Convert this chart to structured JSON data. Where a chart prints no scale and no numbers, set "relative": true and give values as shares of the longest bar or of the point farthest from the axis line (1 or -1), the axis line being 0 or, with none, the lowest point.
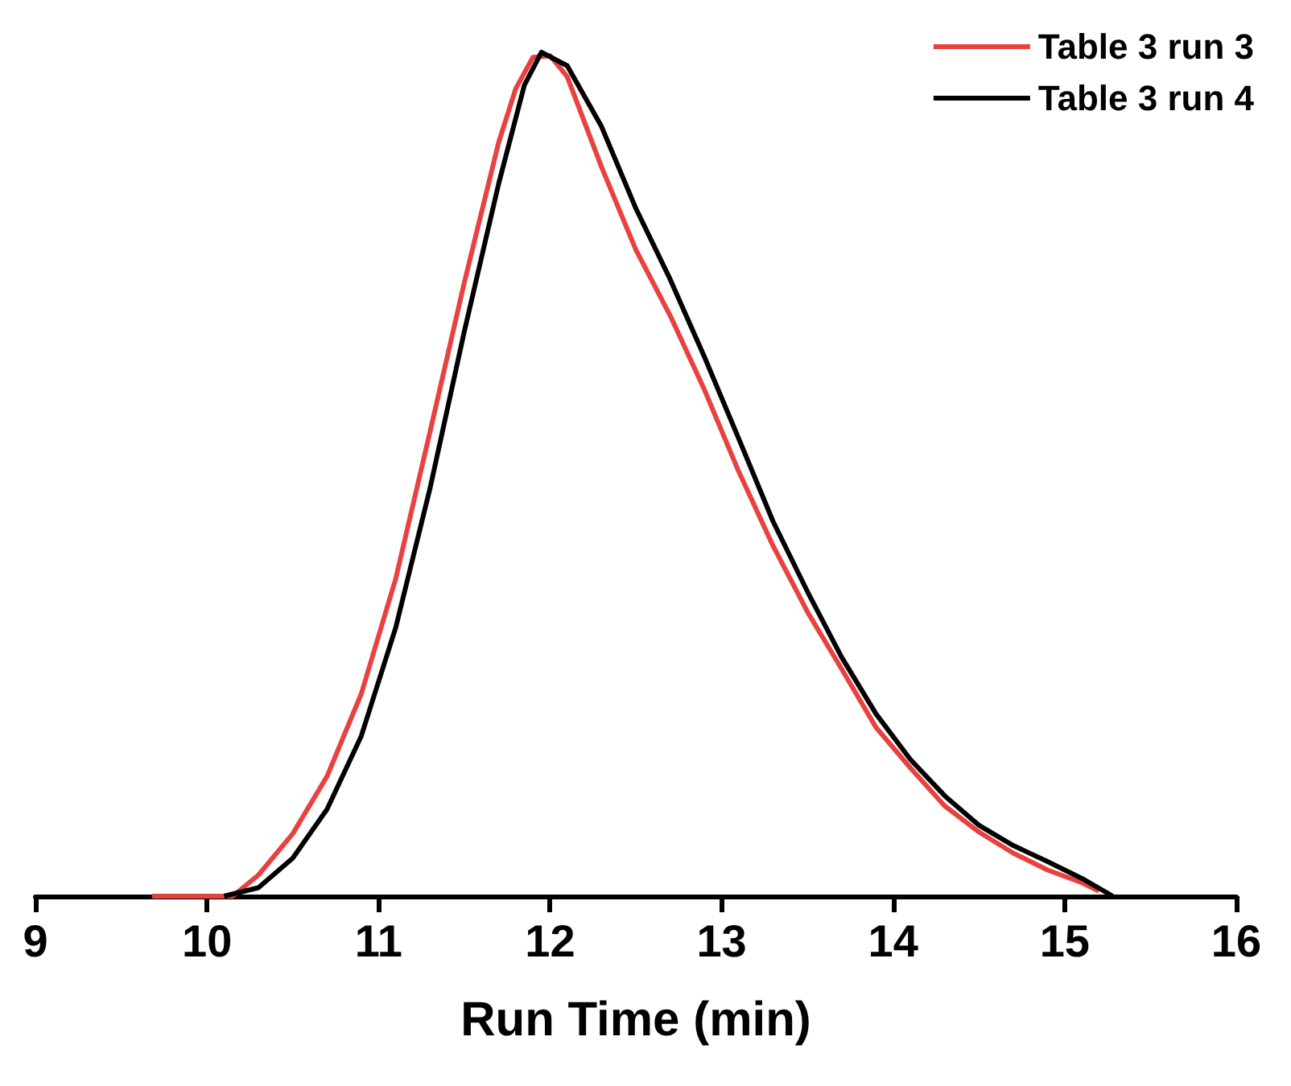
{
  "chart_data": {
    "type": "line",
    "relative": true,
    "xlabel": "Run Time (min)",
    "xlim": [
      9,
      16
    ],
    "xticks": [
      9,
      10,
      11,
      12,
      13,
      14,
      15,
      16
    ],
    "legend": "top right",
    "grid": false,
    "marker": "none",
    "line_style": "solid",
    "series": [
      {
        "name": "Table 3 run 3",
        "color": "#e8413f",
        "x": [
          9.68,
          10.15,
          10.3,
          10.5,
          10.7,
          10.9,
          11.1,
          11.3,
          11.5,
          11.7,
          11.8,
          11.9,
          12.0,
          12.1,
          12.3,
          12.5,
          12.7,
          12.9,
          13.1,
          13.3,
          13.5,
          13.7,
          13.9,
          14.1,
          14.3,
          14.5,
          14.7,
          14.9,
          15.1,
          15.2
        ],
        "values": [
          0,
          0,
          0.025,
          0.074,
          0.142,
          0.24,
          0.376,
          0.55,
          0.727,
          0.893,
          0.957,
          0.994,
          0.996,
          0.971,
          0.864,
          0.766,
          0.688,
          0.6,
          0.503,
          0.415,
          0.337,
          0.269,
          0.2,
          0.152,
          0.107,
          0.076,
          0.051,
          0.031,
          0.016,
          0.006
        ]
      },
      {
        "name": "Table 3 run 4",
        "color": "#000000",
        "x": [
          10.1,
          10.3,
          10.5,
          10.7,
          10.9,
          11.1,
          11.3,
          11.5,
          11.7,
          11.85,
          11.95,
          12.1,
          12.3,
          12.5,
          12.7,
          12.9,
          13.1,
          13.3,
          13.5,
          13.7,
          13.9,
          14.1,
          14.3,
          14.5,
          14.7,
          14.9,
          15.1,
          15.28
        ],
        "values": [
          0,
          0.01,
          0.045,
          0.103,
          0.19,
          0.318,
          0.483,
          0.669,
          0.844,
          0.961,
          1.0,
          0.984,
          0.912,
          0.815,
          0.731,
          0.639,
          0.542,
          0.444,
          0.361,
          0.283,
          0.216,
          0.162,
          0.119,
          0.084,
          0.06,
          0.041,
          0.021,
          0
        ]
      }
    ]
  }
}
